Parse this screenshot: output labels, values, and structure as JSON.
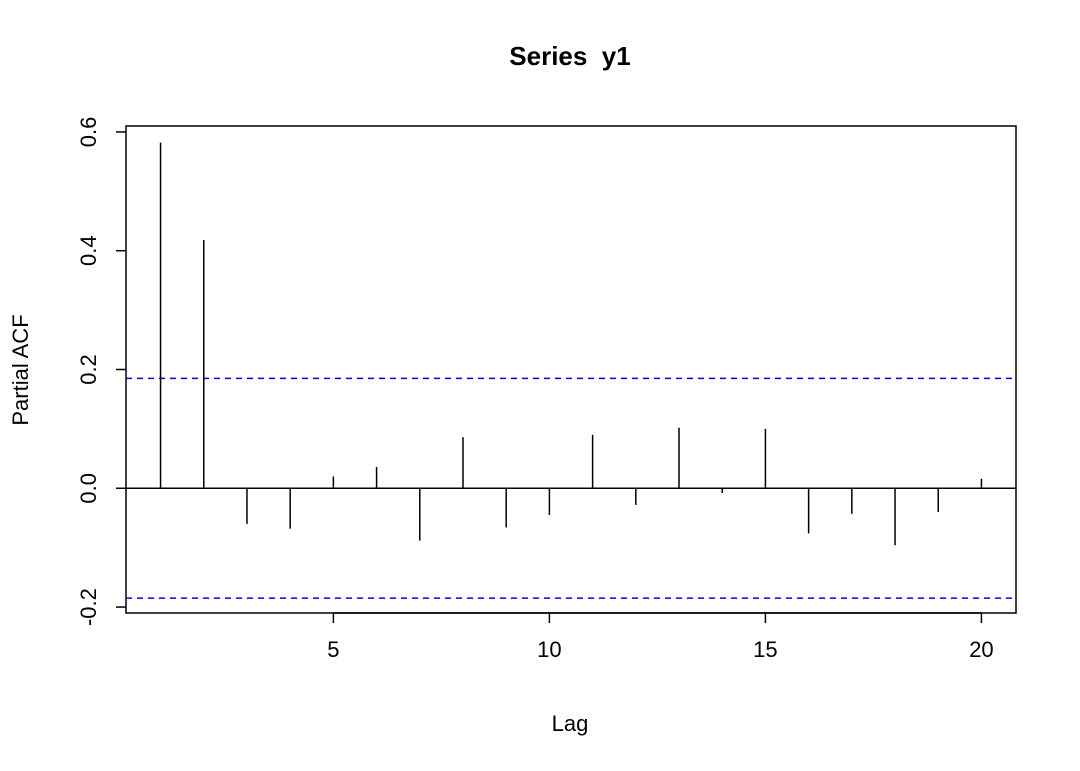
{
  "chart_data": {
    "type": "bar",
    "title": "Series  y1",
    "xlabel": "Lag",
    "ylabel": "Partial ACF",
    "x": [
      1,
      2,
      3,
      4,
      5,
      6,
      7,
      8,
      9,
      10,
      11,
      12,
      13,
      14,
      15,
      16,
      17,
      18,
      19,
      20
    ],
    "values": [
      0.582,
      0.418,
      -0.06,
      -0.068,
      0.02,
      0.036,
      -0.088,
      0.086,
      -0.066,
      -0.045,
      0.09,
      -0.028,
      0.102,
      -0.008,
      0.1,
      -0.076,
      -0.043,
      -0.096,
      -0.04,
      0.016
    ],
    "confidence_bounds": [
      0.185,
      -0.185
    ],
    "xlim": [
      0.2,
      20.8
    ],
    "ylim": [
      -0.21,
      0.61
    ],
    "x_ticks": [
      5,
      10,
      15,
      20
    ],
    "y_ticks": [
      -0.2,
      0.0,
      0.2,
      0.4,
      0.6
    ],
    "x_tick_labels": [
      "5",
      "10",
      "15",
      "20"
    ],
    "y_tick_labels": [
      "-0.2",
      "0.0",
      "0.2",
      "0.4",
      "0.6"
    ],
    "grid": false,
    "bar_color": "#000000",
    "bound_color": "#0000ee"
  }
}
